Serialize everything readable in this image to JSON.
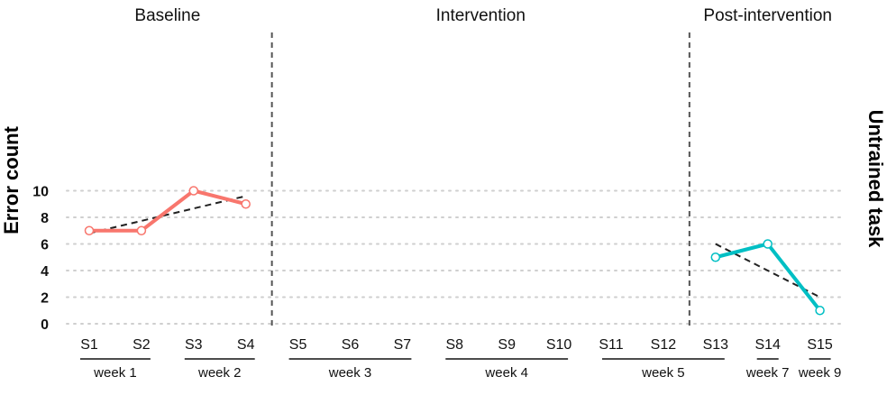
{
  "chart_data": {
    "type": "line",
    "ylabel": "Error count",
    "right_label": "Untrained task",
    "ylim": [
      0,
      11
    ],
    "yticks": [
      0,
      2,
      4,
      6,
      8,
      10
    ],
    "grid": true,
    "sessions": [
      "S1",
      "S2",
      "S3",
      "S4",
      "S5",
      "S6",
      "S7",
      "S8",
      "S9",
      "S10",
      "S11",
      "S12",
      "S13",
      "S14",
      "S15"
    ],
    "phases": [
      {
        "label": "Baseline",
        "from": "S1",
        "to": "S4"
      },
      {
        "label": "Intervention",
        "from": "S5",
        "to": "S12"
      },
      {
        "label": "Post-intervention",
        "from": "S13",
        "to": "S15"
      }
    ],
    "phase_boundaries": [
      4.5,
      12.5
    ],
    "weeks": [
      {
        "label": "week 1",
        "sessions": [
          "S1",
          "S2"
        ]
      },
      {
        "label": "week 2",
        "sessions": [
          "S3",
          "S4"
        ]
      },
      {
        "label": "week 3",
        "sessions": [
          "S5",
          "S6",
          "S7"
        ]
      },
      {
        "label": "week 4",
        "sessions": [
          "S8",
          "S9",
          "S10"
        ]
      },
      {
        "label": "week 5",
        "sessions": [
          "S11",
          "S12",
          "S13"
        ]
      },
      {
        "label": "week 7",
        "sessions": [
          "S14"
        ]
      },
      {
        "label": "week 9",
        "sessions": [
          "S15"
        ]
      }
    ],
    "series": [
      {
        "phase": "Baseline",
        "color": "#f8766d",
        "x": [
          1,
          2,
          3,
          4
        ],
        "values": [
          7,
          7,
          10,
          9
        ]
      },
      {
        "phase": "Post-intervention",
        "color": "#00bfc4",
        "x": [
          13,
          14,
          15
        ],
        "values": [
          5,
          6,
          1
        ]
      }
    ],
    "trendlines": [
      {
        "phase": "Baseline",
        "x": [
          1,
          4
        ],
        "values": [
          6.8,
          9.6
        ]
      },
      {
        "phase": "Post-intervention",
        "x": [
          13,
          15
        ],
        "values": [
          6.0,
          2.0
        ]
      }
    ]
  }
}
